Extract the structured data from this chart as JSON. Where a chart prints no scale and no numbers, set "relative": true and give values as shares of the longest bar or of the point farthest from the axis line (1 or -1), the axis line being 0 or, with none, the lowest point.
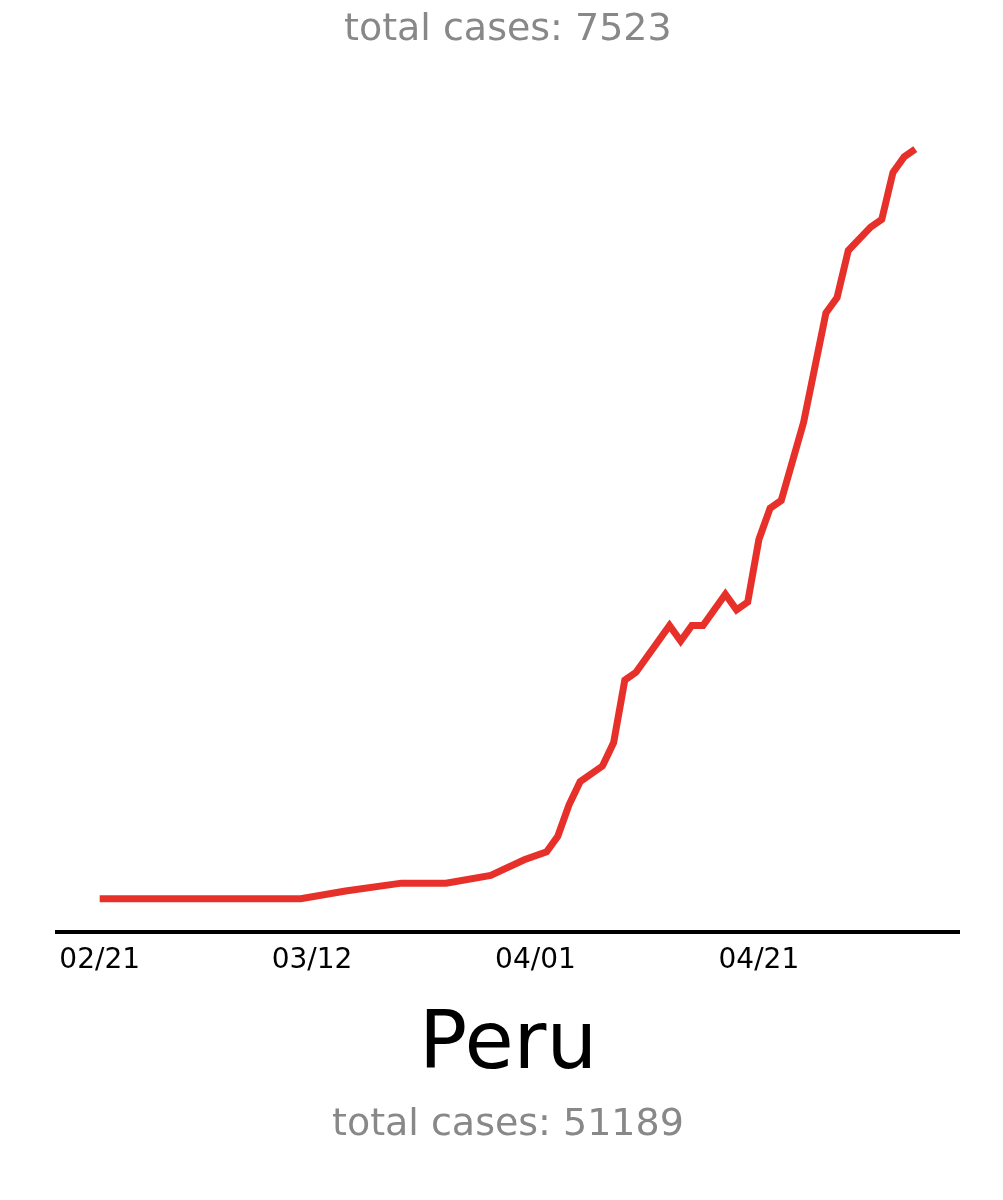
{
  "chart_data": {
    "type": "line",
    "title": "Peru",
    "subtitle": "total cases: 51189",
    "annotations": [
      "total cases: 7523"
    ],
    "relative": true,
    "grid": false,
    "legend": false,
    "marker": "none",
    "line_style": "solid",
    "x": [
      "--02-21",
      "--03-11",
      "--03-15",
      "--03-20",
      "--03-24",
      "--03-28",
      "--03-31",
      "--04-02",
      "--04-03",
      "--04-04",
      "--04-05",
      "--04-07",
      "--04-08",
      "--04-09",
      "--04-10",
      "--04-13",
      "--04-14",
      "--04-15",
      "--04-16",
      "--04-18",
      "--04-19",
      "--04-20",
      "--04-21",
      "--04-22",
      "--04-23",
      "--04-25",
      "--04-27",
      "--04-28",
      "--04-29",
      "--05-01",
      "--05-02",
      "--05-03",
      "--05-04",
      "--05-05"
    ],
    "series": [
      {
        "color": "#e8302a",
        "values": [
          0.04,
          0.04,
          0.05,
          0.06,
          0.06,
          0.07,
          0.09,
          0.1,
          0.12,
          0.16,
          0.19,
          0.21,
          0.24,
          0.32,
          0.33,
          0.39,
          0.37,
          0.39,
          0.39,
          0.43,
          0.41,
          0.42,
          0.5,
          0.54,
          0.55,
          0.65,
          0.79,
          0.81,
          0.87,
          0.9,
          0.91,
          0.97,
          0.99,
          1
        ]
      }
    ],
    "xlim": [
      "--02-17",
      "--05-09"
    ],
    "xticks": [
      {
        "value": "--02-21",
        "label": "02/21"
      },
      {
        "value": "--03-12",
        "label": "03/12"
      },
      {
        "value": "--04-01",
        "label": "04/01"
      },
      {
        "value": "--04-21",
        "label": "04/21"
      }
    ]
  }
}
